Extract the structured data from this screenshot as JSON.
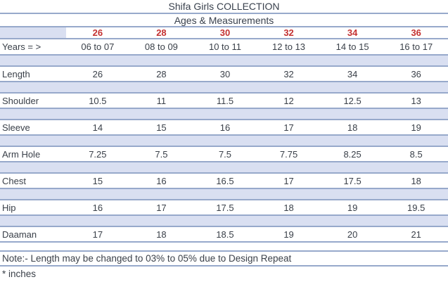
{
  "header": {
    "title": "Shifa Girls COLLECTION",
    "subtitle": "Ages & Measurements"
  },
  "table": {
    "size_header": {
      "label": "",
      "values": [
        "26",
        "28",
        "30",
        "32",
        "34",
        "36"
      ]
    },
    "years_header": {
      "label": "Years = >",
      "values": [
        "06 to 07",
        "08 to 09",
        "10 to 11",
        "12 to 13",
        "14 to 15",
        "16 to 17"
      ]
    },
    "rows": [
      {
        "label": "Length",
        "values": [
          "26",
          "28",
          "30",
          "32",
          "34",
          "36"
        ]
      },
      {
        "label": "Shoulder",
        "values": [
          "10.5",
          "11",
          "11.5",
          "12",
          "12.5",
          "13"
        ]
      },
      {
        "label": "Sleeve",
        "values": [
          "14",
          "15",
          "16",
          "17",
          "18",
          "19"
        ]
      },
      {
        "label": "Arm Hole",
        "values": [
          "7.25",
          "7.5",
          "7.5",
          "7.75",
          "8.25",
          "8.5"
        ]
      },
      {
        "label": "Chest",
        "values": [
          "15",
          "16",
          "16.5",
          "17",
          "17.5",
          "18"
        ]
      },
      {
        "label": "Hip",
        "values": [
          "16",
          "17",
          "17.5",
          "18",
          "19",
          "19.5"
        ]
      },
      {
        "label": "Daaman",
        "values": [
          "17",
          "18",
          "18.5",
          "19",
          "20",
          "21"
        ]
      }
    ]
  },
  "footer": {
    "note": "Note:- Length may be changed to 03% to 05% due to Design Repeat",
    "unit_note": "* inches"
  },
  "colors": {
    "accent_red": "#c43131",
    "line_blue": "#97a9cb",
    "band_blue": "#d9dff1",
    "text_dark": "#3a4049"
  }
}
